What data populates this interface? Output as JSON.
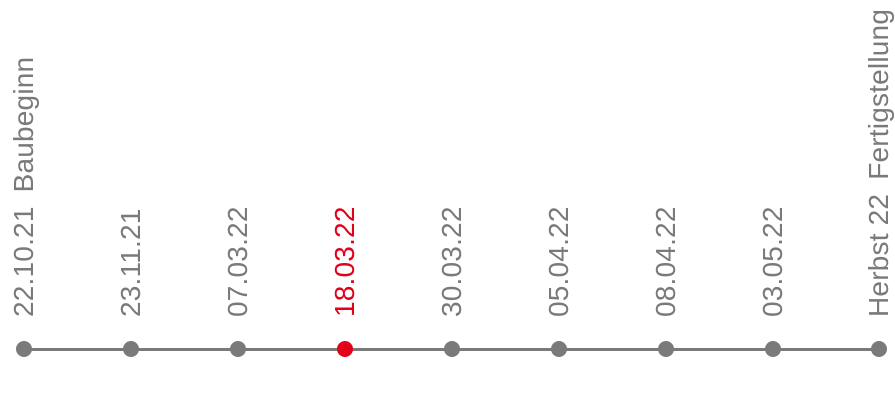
{
  "timeline": {
    "current_index": 3,
    "colors": {
      "default": "#7a7a7a",
      "current": "#e3001b"
    },
    "milestones": [
      {
        "date": "22.10.21",
        "caption": "Baubeginn"
      },
      {
        "date": "23.11.21",
        "caption": ""
      },
      {
        "date": "07.03.22",
        "caption": ""
      },
      {
        "date": "18.03.22",
        "caption": ""
      },
      {
        "date": "30.03.22",
        "caption": ""
      },
      {
        "date": "05.04.22",
        "caption": ""
      },
      {
        "date": "08.04.22",
        "caption": ""
      },
      {
        "date": "03.05.22",
        "caption": ""
      },
      {
        "date": "Herbst 22",
        "caption": "Fertigstellung"
      }
    ]
  }
}
